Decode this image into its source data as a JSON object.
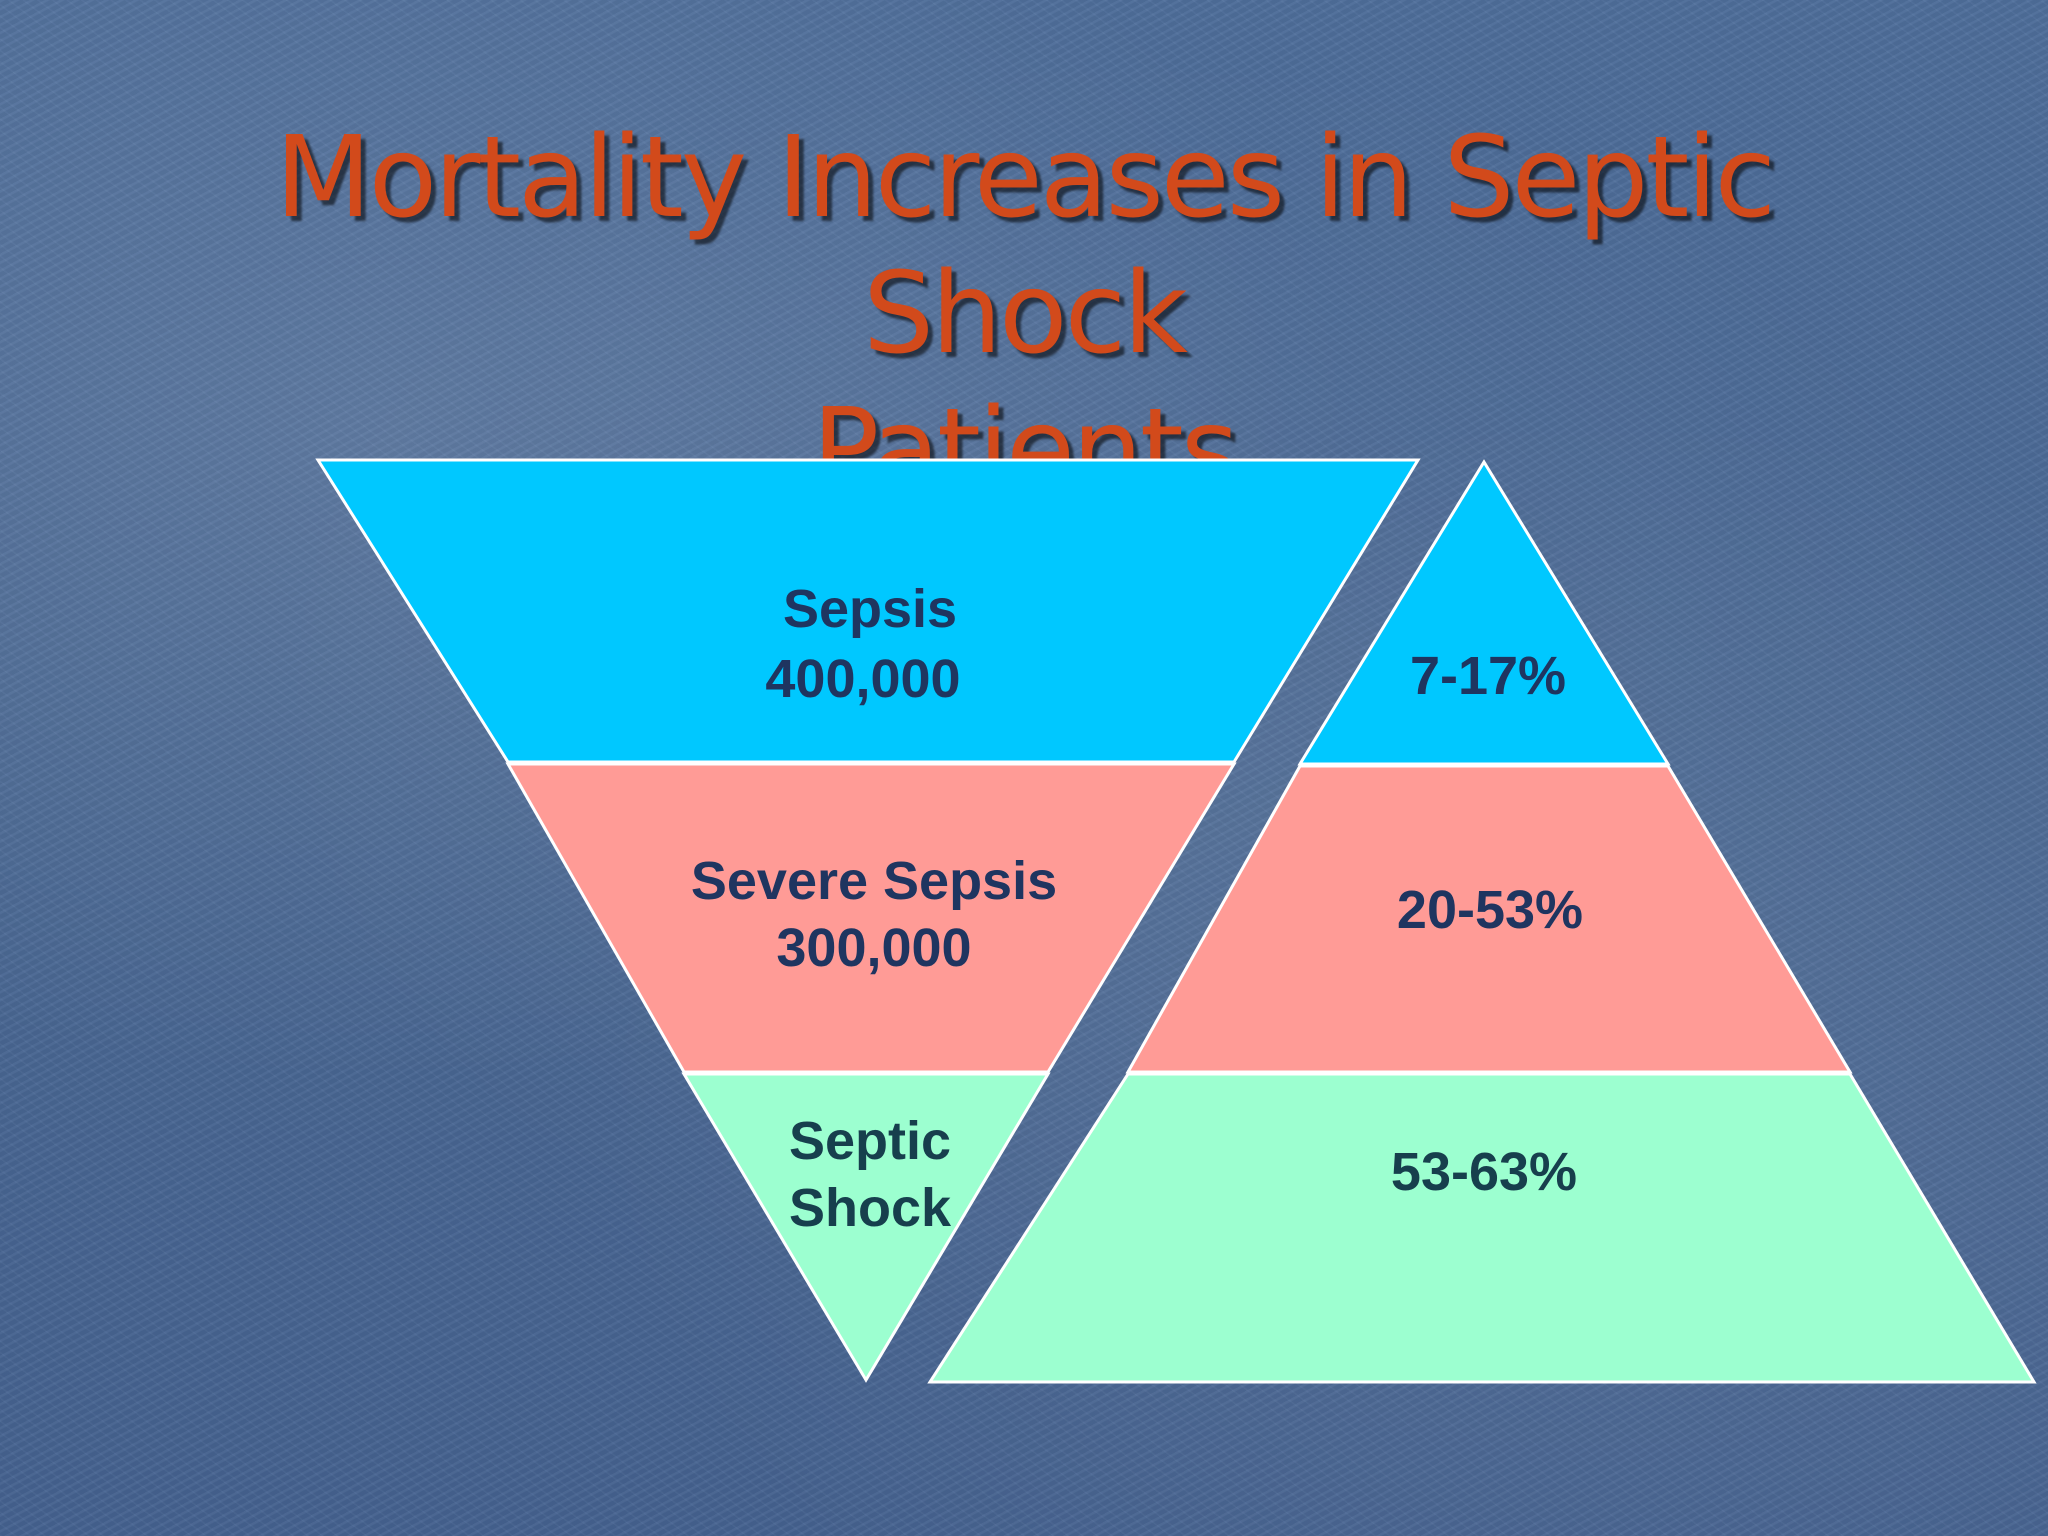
{
  "slide": {
    "title_line1": "Mortality Increases in Septic Shock",
    "title_line2": "Patients"
  },
  "funnel": {
    "segments": [
      {
        "name": "Sepsis",
        "label": "Sepsis",
        "count": "400,000",
        "color": "#00c8ff"
      },
      {
        "name": "Severe Sepsis",
        "label": "Severe Sepsis",
        "count": "300,000",
        "color": "#ff9b96"
      },
      {
        "name": "Septic Shock",
        "label_line1": "Septic",
        "label_line2": "Shock",
        "color": "#9cffd0"
      }
    ]
  },
  "pyramid": {
    "segments": [
      {
        "label": "7-17%",
        "color": "#00c8ff"
      },
      {
        "label": "20-53%",
        "color": "#ff9b96"
      },
      {
        "label": "53-63%",
        "color": "#9cffd0"
      }
    ]
  }
}
